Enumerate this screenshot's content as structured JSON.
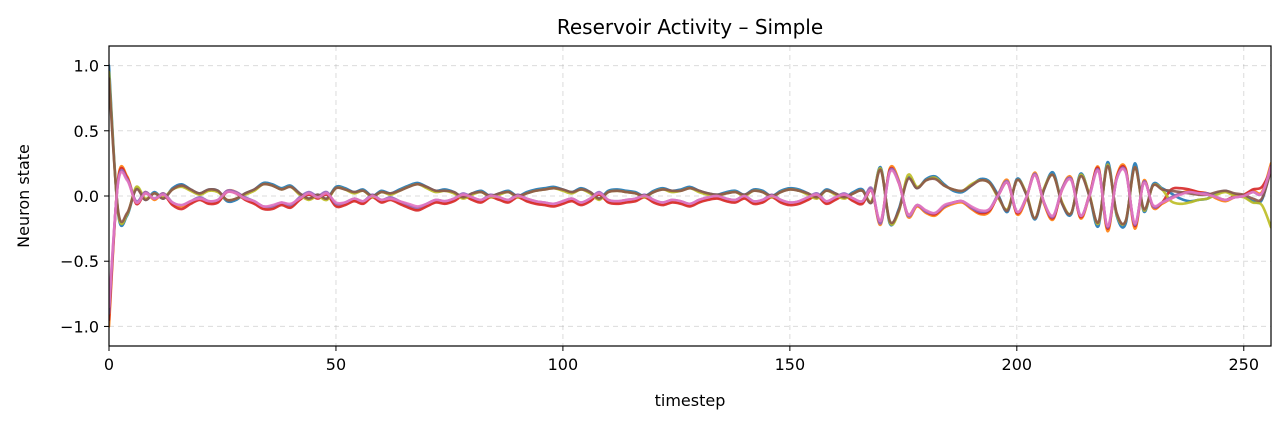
{
  "chart_data": {
    "type": "line",
    "title": "Reservoir Activity – Simple",
    "xlabel": "timestep",
    "ylabel": "Neuron state",
    "xlim": [
      0,
      256
    ],
    "ylim": [
      -1.15,
      1.15
    ],
    "grid": true,
    "xticks": [
      0,
      50,
      100,
      150,
      200,
      250
    ],
    "xtick_labels": [
      "0",
      "50",
      "100",
      "150",
      "200",
      "250"
    ],
    "yticks": [
      1.0,
      0.5,
      0.0,
      -0.5,
      -1.0
    ],
    "ytick_labels": [
      "1.0",
      "0.5",
      "0.0",
      "−0.5",
      "−1.0"
    ],
    "x": [
      0,
      2,
      4,
      6,
      8,
      10,
      12,
      14,
      16,
      18,
      20,
      22,
      24,
      26,
      28,
      30,
      32,
      34,
      36,
      38,
      40,
      42,
      44,
      46,
      48,
      50,
      52,
      54,
      56,
      58,
      60,
      62,
      64,
      66,
      68,
      70,
      72,
      74,
      76,
      78,
      80,
      82,
      84,
      86,
      88,
      90,
      92,
      94,
      96,
      98,
      100,
      102,
      104,
      106,
      108,
      110,
      112,
      114,
      116,
      118,
      120,
      122,
      124,
      126,
      128,
      130,
      132,
      134,
      136,
      138,
      140,
      142,
      144,
      146,
      148,
      150,
      152,
      154,
      156,
      158,
      160,
      162,
      164,
      166,
      168,
      170,
      172,
      174,
      176,
      178,
      180,
      182,
      184,
      186,
      188,
      190,
      192,
      194,
      196,
      198,
      200,
      202,
      204,
      206,
      208,
      210,
      212,
      214,
      216,
      218,
      220,
      222,
      224,
      226,
      228,
      230,
      232,
      234,
      236,
      238,
      240,
      242,
      244,
      246,
      248,
      250,
      252,
      254,
      256
    ],
    "series": [
      {
        "color": "#1f77b4",
        "values": [
          1.0,
          -0.13,
          -0.15,
          0.06,
          -0.03,
          0.03,
          -0.02,
          0.06,
          0.09,
          0.05,
          0.02,
          0.05,
          0.04,
          -0.04,
          -0.03,
          0.02,
          0.05,
          0.1,
          0.09,
          0.06,
          0.08,
          0.02,
          -0.02,
          0.01,
          -0.02,
          0.07,
          0.06,
          0.03,
          0.05,
          0.0,
          0.04,
          0.02,
          0.05,
          0.08,
          0.1,
          0.07,
          0.04,
          0.05,
          0.03,
          -0.01,
          0.02,
          0.04,
          0.0,
          0.02,
          0.04,
          0.0,
          0.03,
          0.05,
          0.06,
          0.07,
          0.05,
          0.03,
          0.06,
          0.03,
          -0.02,
          0.04,
          0.05,
          0.04,
          0.03,
          0.0,
          0.04,
          0.06,
          0.04,
          0.05,
          0.07,
          0.04,
          0.02,
          0.01,
          0.03,
          0.04,
          0.01,
          0.05,
          0.04,
          0.0,
          0.04,
          0.06,
          0.05,
          0.02,
          -0.01,
          0.05,
          0.02,
          -0.01,
          0.03,
          0.05,
          -0.05,
          0.22,
          -0.21,
          -0.1,
          0.14,
          0.06,
          0.13,
          0.15,
          0.09,
          0.04,
          0.03,
          0.08,
          0.13,
          0.11,
          0.0,
          -0.12,
          0.13,
          0.02,
          -0.18,
          0.05,
          0.18,
          -0.06,
          -0.14,
          0.17,
          0.0,
          -0.23,
          0.26,
          -0.15,
          -0.21,
          0.25,
          -0.12,
          0.09,
          0.06,
          0.02,
          -0.02,
          -0.04,
          -0.03,
          -0.02,
          0.02,
          0.04,
          0.01,
          0.0,
          -0.04,
          -0.03,
          0.22
        ]
      },
      {
        "color": "#ff7f0e",
        "values": [
          -1.0,
          0.13,
          0.15,
          -0.05,
          0.03,
          -0.03,
          0.02,
          -0.06,
          -0.08,
          -0.05,
          -0.02,
          -0.05,
          -0.04,
          0.04,
          0.03,
          -0.02,
          -0.05,
          -0.09,
          -0.09,
          -0.06,
          -0.08,
          -0.02,
          0.02,
          -0.01,
          0.02,
          -0.07,
          -0.06,
          -0.03,
          -0.05,
          0.0,
          -0.04,
          -0.02,
          -0.05,
          -0.08,
          -0.1,
          -0.07,
          -0.04,
          -0.05,
          -0.03,
          0.01,
          -0.02,
          -0.04,
          0.0,
          -0.02,
          -0.04,
          0.0,
          -0.03,
          -0.05,
          -0.06,
          -0.07,
          -0.05,
          -0.03,
          -0.06,
          -0.03,
          0.02,
          -0.04,
          -0.05,
          -0.04,
          -0.03,
          0.0,
          -0.04,
          -0.06,
          -0.04,
          -0.05,
          -0.07,
          -0.04,
          -0.02,
          -0.01,
          -0.03,
          -0.04,
          -0.01,
          -0.05,
          -0.04,
          0.0,
          -0.04,
          -0.06,
          -0.05,
          -0.02,
          0.01,
          -0.05,
          -0.02,
          0.01,
          -0.03,
          -0.05,
          0.05,
          -0.22,
          0.21,
          0.12,
          -0.16,
          -0.08,
          -0.13,
          -0.15,
          -0.09,
          -0.06,
          -0.05,
          -0.1,
          -0.14,
          -0.12,
          0.02,
          0.12,
          -0.14,
          -0.03,
          0.18,
          -0.06,
          -0.18,
          0.06,
          0.14,
          -0.17,
          0.0,
          0.22,
          -0.27,
          0.15,
          0.21,
          -0.25,
          0.12,
          -0.09,
          -0.06,
          -0.02,
          0.02,
          0.04,
          0.03,
          0.02,
          -0.02,
          -0.04,
          -0.01,
          0.0,
          0.04,
          0.03,
          0.25
        ]
      },
      {
        "color": "#d62728",
        "values": [
          -0.95,
          0.12,
          0.14,
          -0.06,
          0.02,
          -0.02,
          0.01,
          -0.07,
          -0.1,
          -0.06,
          -0.03,
          -0.06,
          -0.05,
          0.03,
          0.02,
          -0.03,
          -0.06,
          -0.1,
          -0.1,
          -0.07,
          -0.09,
          -0.03,
          0.01,
          -0.02,
          0.01,
          -0.08,
          -0.07,
          -0.04,
          -0.06,
          -0.01,
          -0.05,
          -0.03,
          -0.06,
          -0.09,
          -0.11,
          -0.08,
          -0.05,
          -0.06,
          -0.04,
          0.0,
          -0.03,
          -0.05,
          -0.01,
          -0.03,
          -0.05,
          -0.01,
          -0.04,
          -0.06,
          -0.07,
          -0.08,
          -0.06,
          -0.04,
          -0.07,
          -0.04,
          0.01,
          -0.05,
          -0.06,
          -0.05,
          -0.04,
          -0.01,
          -0.05,
          -0.07,
          -0.05,
          -0.06,
          -0.08,
          -0.05,
          -0.03,
          -0.02,
          -0.04,
          -0.05,
          -0.02,
          -0.06,
          -0.05,
          -0.01,
          -0.05,
          -0.07,
          -0.06,
          -0.03,
          0.0,
          -0.06,
          -0.03,
          0.0,
          -0.04,
          -0.06,
          0.04,
          -0.2,
          0.2,
          0.1,
          -0.14,
          -0.07,
          -0.12,
          -0.14,
          -0.08,
          -0.05,
          -0.04,
          -0.09,
          -0.13,
          -0.11,
          0.01,
          0.1,
          -0.13,
          -0.02,
          0.16,
          -0.05,
          -0.17,
          0.05,
          0.13,
          -0.16,
          0.01,
          0.21,
          -0.25,
          0.14,
          0.2,
          -0.23,
          0.11,
          -0.08,
          -0.05,
          0.05,
          0.06,
          0.05,
          0.03,
          0.02,
          -0.01,
          -0.03,
          0.0,
          0.01,
          0.05,
          0.07,
          0.2
        ]
      },
      {
        "color": "#bcbd22",
        "values": [
          0.95,
          -0.12,
          -0.14,
          0.07,
          -0.02,
          0.02,
          -0.01,
          0.05,
          0.07,
          0.04,
          0.01,
          0.04,
          0.03,
          -0.03,
          -0.02,
          0.01,
          0.04,
          0.09,
          0.08,
          0.05,
          0.07,
          0.01,
          -0.03,
          0.0,
          -0.03,
          0.06,
          0.05,
          0.02,
          0.04,
          -0.01,
          0.03,
          0.01,
          0.04,
          0.07,
          0.09,
          0.06,
          0.03,
          0.04,
          0.02,
          -0.02,
          0.01,
          0.03,
          -0.01,
          0.01,
          0.03,
          -0.01,
          0.02,
          0.04,
          0.05,
          0.06,
          0.04,
          0.02,
          0.05,
          0.02,
          -0.03,
          0.03,
          0.04,
          0.03,
          0.02,
          -0.01,
          0.03,
          0.05,
          0.03,
          0.04,
          0.06,
          0.03,
          0.01,
          0.0,
          0.02,
          0.03,
          0.0,
          0.04,
          0.03,
          -0.01,
          0.03,
          0.05,
          0.04,
          0.01,
          -0.02,
          0.04,
          0.01,
          -0.02,
          0.02,
          0.04,
          -0.04,
          0.21,
          -0.2,
          -0.12,
          0.16,
          0.07,
          0.12,
          0.14,
          0.08,
          0.05,
          0.04,
          0.09,
          0.12,
          0.1,
          -0.02,
          -0.1,
          0.12,
          0.03,
          -0.17,
          0.06,
          0.16,
          -0.05,
          -0.13,
          0.16,
          0.01,
          -0.21,
          0.24,
          -0.14,
          -0.19,
          0.22,
          -0.11,
          0.08,
          0.05,
          -0.04,
          -0.06,
          -0.05,
          -0.03,
          -0.02,
          0.01,
          0.03,
          0.0,
          -0.01,
          -0.05,
          -0.07,
          -0.24
        ]
      },
      {
        "color": "#9467bd",
        "values": [
          -0.9,
          0.11,
          0.13,
          -0.04,
          0.03,
          -0.02,
          0.02,
          -0.05,
          -0.07,
          -0.04,
          -0.01,
          -0.04,
          -0.03,
          0.04,
          0.03,
          -0.01,
          -0.04,
          -0.08,
          -0.08,
          -0.05,
          -0.07,
          -0.01,
          0.03,
          0.0,
          0.03,
          -0.06,
          -0.05,
          -0.02,
          -0.04,
          0.01,
          -0.03,
          -0.01,
          -0.04,
          -0.07,
          -0.09,
          -0.06,
          -0.03,
          -0.04,
          -0.02,
          0.02,
          -0.01,
          -0.03,
          0.01,
          -0.01,
          -0.03,
          0.01,
          -0.02,
          -0.04,
          -0.05,
          -0.06,
          -0.04,
          -0.02,
          -0.05,
          -0.02,
          0.03,
          -0.03,
          -0.04,
          -0.03,
          -0.02,
          0.01,
          -0.03,
          -0.05,
          -0.03,
          -0.04,
          -0.06,
          -0.03,
          -0.01,
          0.0,
          -0.02,
          -0.03,
          0.0,
          -0.04,
          -0.03,
          0.01,
          -0.03,
          -0.05,
          -0.04,
          -0.01,
          0.02,
          -0.04,
          -0.01,
          0.02,
          -0.02,
          -0.04,
          0.06,
          -0.21,
          0.19,
          0.11,
          -0.15,
          -0.07,
          -0.12,
          -0.13,
          -0.08,
          -0.05,
          -0.04,
          -0.09,
          -0.12,
          -0.1,
          0.02,
          0.11,
          -0.12,
          -0.02,
          0.17,
          -0.05,
          -0.16,
          0.06,
          0.13,
          -0.15,
          0.0,
          0.2,
          -0.24,
          0.13,
          0.19,
          -0.22,
          0.11,
          -0.08,
          -0.05,
          -0.01,
          0.02,
          0.03,
          0.02,
          0.02,
          -0.01,
          -0.03,
          -0.01,
          0.0,
          0.03,
          0.02,
          0.23
        ]
      },
      {
        "color": "#8c564b",
        "values": [
          0.9,
          -0.11,
          -0.13,
          0.05,
          -0.03,
          0.02,
          -0.02,
          0.05,
          0.08,
          0.05,
          0.02,
          0.05,
          0.04,
          -0.03,
          -0.02,
          0.02,
          0.05,
          0.09,
          0.08,
          0.05,
          0.07,
          0.02,
          -0.02,
          0.01,
          -0.02,
          0.06,
          0.05,
          0.03,
          0.04,
          0.0,
          0.03,
          0.02,
          0.04,
          0.07,
          0.09,
          0.07,
          0.04,
          0.04,
          0.03,
          -0.01,
          0.02,
          0.03,
          0.0,
          0.02,
          0.03,
          0.0,
          0.02,
          0.04,
          0.05,
          0.06,
          0.05,
          0.03,
          0.05,
          0.03,
          -0.02,
          0.03,
          0.04,
          0.03,
          0.02,
          0.0,
          0.03,
          0.05,
          0.04,
          0.04,
          0.06,
          0.04,
          0.02,
          0.01,
          0.02,
          0.03,
          0.01,
          0.04,
          0.03,
          0.0,
          0.03,
          0.05,
          0.04,
          0.02,
          -0.01,
          0.04,
          0.02,
          -0.01,
          0.02,
          0.04,
          -0.05,
          0.2,
          -0.19,
          -0.11,
          0.13,
          0.06,
          0.12,
          0.13,
          0.08,
          0.05,
          0.04,
          0.08,
          0.12,
          0.1,
          -0.01,
          -0.11,
          0.12,
          0.02,
          -0.17,
          0.05,
          0.16,
          -0.06,
          -0.13,
          0.15,
          0.0,
          -0.2,
          0.23,
          -0.13,
          -0.19,
          0.22,
          -0.1,
          0.08,
          0.05,
          0.04,
          0.03,
          0.02,
          0.01,
          0.01,
          0.03,
          0.04,
          0.02,
          0.01,
          -0.02,
          -0.02,
          0.2
        ]
      },
      {
        "color": "#e377c2",
        "values": [
          -0.85,
          0.1,
          0.12,
          -0.05,
          0.02,
          -0.02,
          0.01,
          -0.05,
          -0.07,
          -0.04,
          -0.02,
          -0.04,
          -0.03,
          0.03,
          0.02,
          -0.02,
          -0.04,
          -0.08,
          -0.07,
          -0.05,
          -0.06,
          -0.02,
          0.02,
          -0.01,
          0.02,
          -0.05,
          -0.05,
          -0.02,
          -0.04,
          0.0,
          -0.03,
          -0.02,
          -0.04,
          -0.06,
          -0.08,
          -0.06,
          -0.03,
          -0.04,
          -0.02,
          0.01,
          -0.01,
          -0.03,
          0.0,
          -0.01,
          -0.03,
          0.0,
          -0.02,
          -0.04,
          -0.05,
          -0.06,
          -0.04,
          -0.02,
          -0.05,
          -0.02,
          0.02,
          -0.03,
          -0.04,
          -0.03,
          -0.02,
          0.0,
          -0.03,
          -0.05,
          -0.03,
          -0.04,
          -0.06,
          -0.03,
          -0.01,
          0.0,
          -0.02,
          -0.03,
          0.0,
          -0.04,
          -0.03,
          0.0,
          -0.03,
          -0.05,
          -0.04,
          -0.01,
          0.01,
          -0.04,
          -0.01,
          0.01,
          -0.02,
          -0.04,
          0.04,
          -0.19,
          0.18,
          0.1,
          -0.14,
          -0.07,
          -0.11,
          -0.13,
          -0.07,
          -0.05,
          -0.04,
          -0.08,
          -0.11,
          -0.1,
          0.01,
          0.1,
          -0.12,
          -0.02,
          0.16,
          -0.05,
          -0.15,
          0.05,
          0.12,
          -0.15,
          0.0,
          0.19,
          -0.23,
          0.13,
          0.18,
          -0.21,
          0.1,
          -0.07,
          -0.05,
          -0.02,
          0.01,
          0.03,
          0.02,
          0.01,
          -0.01,
          -0.03,
          -0.01,
          0.0,
          0.03,
          0.02,
          0.22
        ]
      }
    ]
  }
}
